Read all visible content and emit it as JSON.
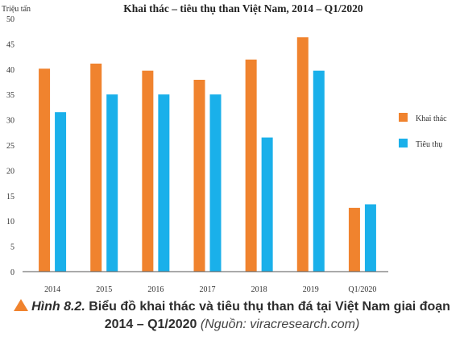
{
  "chart_data": {
    "type": "bar",
    "title": "Khai thác – tiêu thụ than Việt Nam, 2014 – Q1/2020",
    "ylabel": "Triệu tấn",
    "categories": [
      "2014",
      "2015",
      "2016",
      "2017",
      "2018",
      "2019",
      "Q1/2020"
    ],
    "series": [
      {
        "name": "Khai thác",
        "color": "#f0832e",
        "values": [
          40.1,
          41.1,
          39.7,
          37.9,
          41.9,
          46.3,
          12.6
        ]
      },
      {
        "name": "Tiêu thụ",
        "color": "#1ab0ea",
        "values": [
          31.5,
          35.0,
          35.0,
          35.0,
          26.5,
          39.7,
          13.3
        ]
      }
    ],
    "ylim": [
      0,
      50
    ],
    "yticks": [
      "0",
      "5",
      "10",
      "15",
      "20",
      "25",
      "30",
      "35",
      "40",
      "45",
      "50"
    ],
    "grid": false,
    "legend": "right"
  },
  "caption": {
    "figure_number": "Hình 8.2.",
    "text": "Biểu đồ khai thác và tiêu thụ than đá tại Việt Nam giai đoạn 2014 – Q1/2020",
    "source": "(Nguồn: viracresearch.com)"
  }
}
